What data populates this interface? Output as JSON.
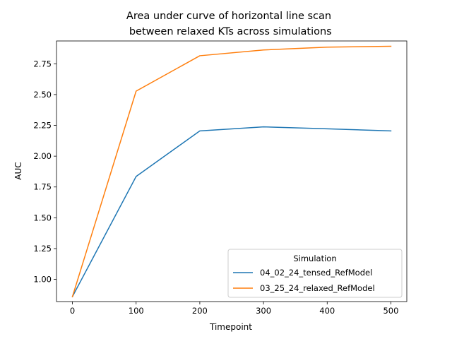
{
  "chart_data": {
    "type": "line",
    "title_line1": "Area under curve of horizontal line scan",
    "title_line2": " between relaxed KTs across simulations",
    "xlabel": "Timepoint",
    "ylabel": "AUC",
    "x": [
      0,
      100,
      200,
      300,
      400,
      500
    ],
    "xlim": [
      -25,
      525
    ],
    "ylim": [
      0.82,
      2.935
    ],
    "xticks": [
      0,
      100,
      200,
      300,
      400,
      500
    ],
    "yticks": [
      1.0,
      1.25,
      1.5,
      1.75,
      2.0,
      2.25,
      2.5,
      2.75
    ],
    "grid": false,
    "legend": {
      "title": "Simulation",
      "placement": "lower right"
    },
    "series": [
      {
        "name": "04_02_24_tensed_RefModel",
        "color": "#1f77b4",
        "values": [
          0.86,
          1.835,
          2.205,
          2.238,
          2.222,
          2.205
        ]
      },
      {
        "name": "03_25_24_relaxed_RefModel",
        "color": "#ff7f0e",
        "values": [
          0.86,
          2.528,
          2.815,
          2.862,
          2.885,
          2.892
        ]
      }
    ]
  }
}
